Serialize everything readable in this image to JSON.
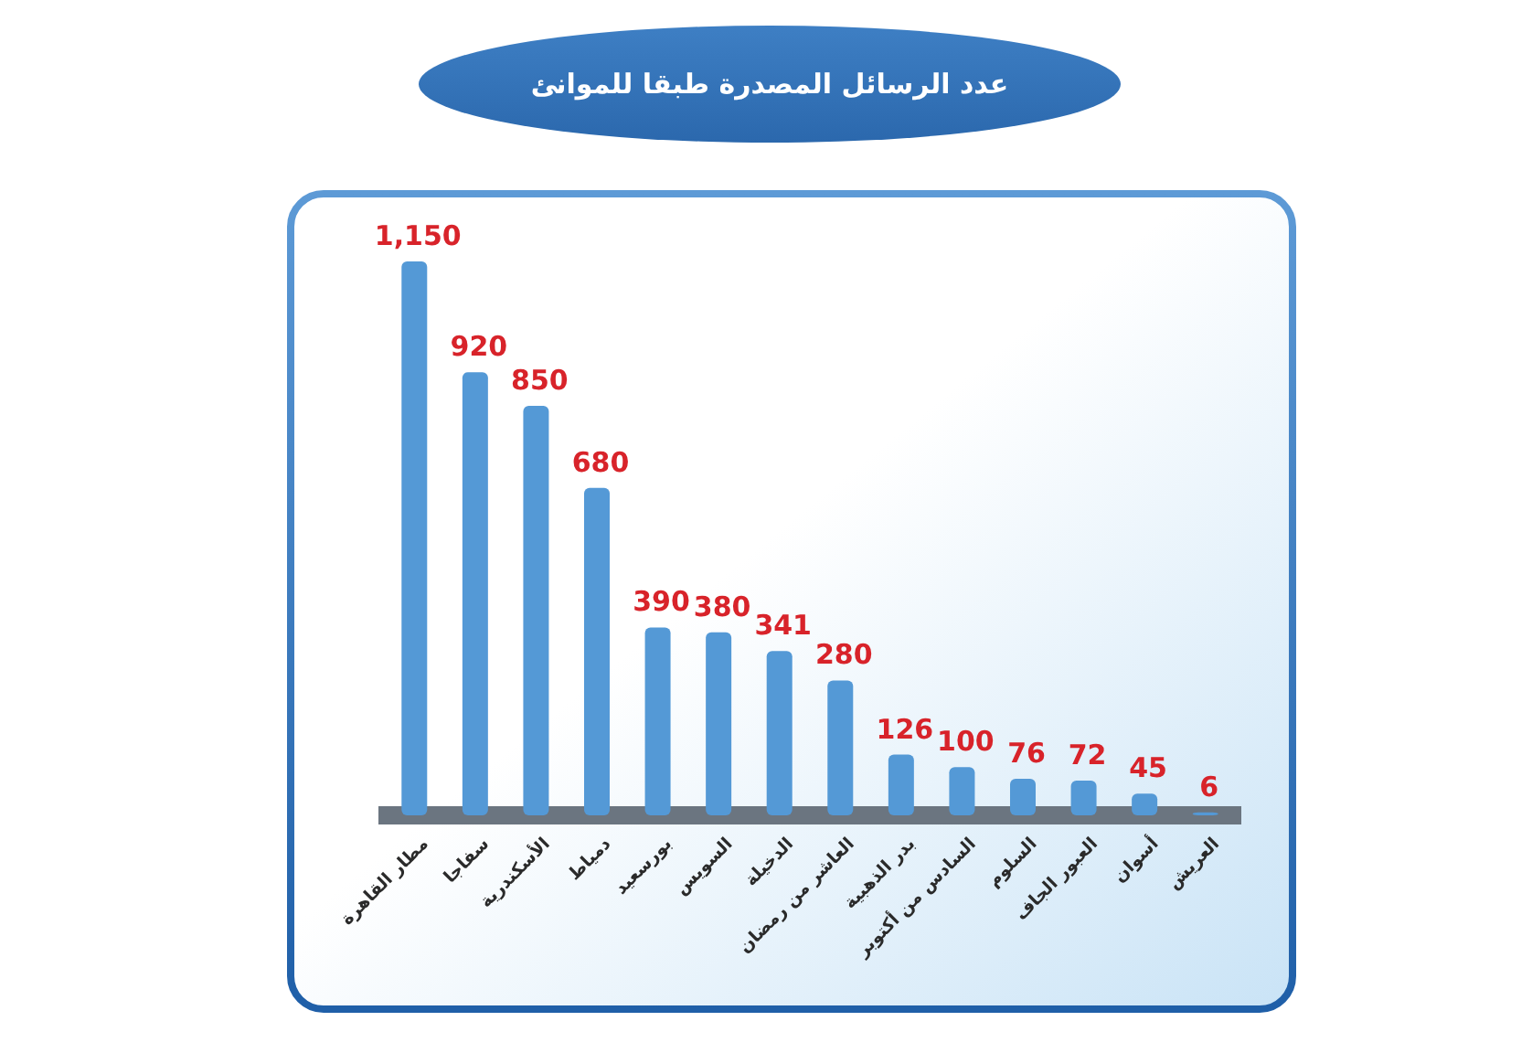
{
  "chart_data": {
    "type": "bar",
    "title": "عدد الرسائل المصدرة طبقا للموانئ",
    "categories": [
      "مطار القاهرة",
      "سفاجا",
      "الأسكندرية",
      "دمياط",
      "بورسعيد",
      "السويس",
      "الدخيلة",
      "العاشر من رمضان",
      "بدر الذهبية",
      "السادس من أكتوبر",
      "السلوم",
      "العبور الجاف",
      "أسوان",
      "العريش"
    ],
    "values": [
      1150,
      920,
      850,
      680,
      390,
      380,
      341,
      280,
      126,
      100,
      76,
      72,
      45,
      6
    ],
    "value_labels": [
      "1,150",
      "920",
      "850",
      "680",
      "390",
      "380",
      "341",
      "280",
      "126",
      "100",
      "76",
      "72",
      "45",
      "6"
    ],
    "color": "#5499d6"
  }
}
